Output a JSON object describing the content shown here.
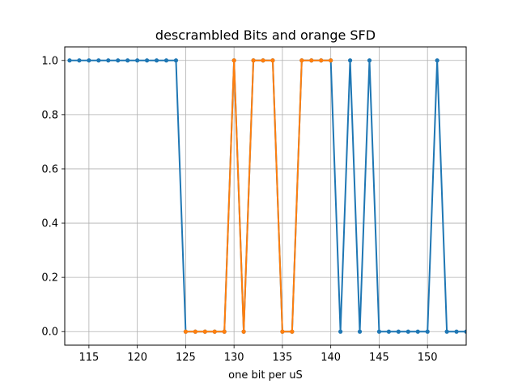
{
  "chart_data": {
    "type": "line",
    "title": "descrambled Bits and orange SFD",
    "xlabel": "one bit per uS",
    "ylabel": "",
    "xlim": [
      112.5,
      154
    ],
    "ylim": [
      -0.05,
      1.05
    ],
    "grid": true,
    "xticks": [
      115,
      120,
      125,
      130,
      135,
      140,
      145,
      150
    ],
    "yticks": [
      0.0,
      0.2,
      0.4,
      0.6,
      0.8,
      1.0
    ],
    "xtick_labels": [
      "115",
      "120",
      "125",
      "130",
      "135",
      "140",
      "145",
      "150"
    ],
    "ytick_labels": [
      "0.0",
      "0.2",
      "0.4",
      "0.6",
      "0.8",
      "1.0"
    ],
    "series": [
      {
        "color": "#1f77b4",
        "x": [
          113,
          114,
          115,
          116,
          117,
          118,
          119,
          120,
          121,
          122,
          123,
          124,
          125,
          126,
          127,
          128,
          129,
          130,
          131,
          132,
          133,
          134,
          135,
          136,
          137,
          138,
          139,
          140,
          141,
          142,
          143,
          144,
          145,
          146,
          147,
          148,
          149,
          150,
          151,
          152,
          153,
          154
        ],
        "y": [
          1,
          1,
          1,
          1,
          1,
          1,
          1,
          1,
          1,
          1,
          1,
          1,
          0,
          0,
          0,
          0,
          0,
          1,
          0,
          1,
          1,
          1,
          0,
          0,
          1,
          1,
          1,
          1,
          0,
          1,
          0,
          1,
          0,
          0,
          0,
          0,
          0,
          0,
          1,
          0,
          0,
          0
        ]
      },
      {
        "color": "#ff7f0e",
        "x": [
          125,
          126,
          127,
          128,
          129,
          130,
          131,
          132,
          133,
          134,
          135,
          136,
          137,
          138,
          139,
          140
        ],
        "y": [
          0,
          0,
          0,
          0,
          0,
          1,
          0,
          1,
          1,
          1,
          0,
          0,
          1,
          1,
          1,
          1
        ]
      }
    ]
  }
}
